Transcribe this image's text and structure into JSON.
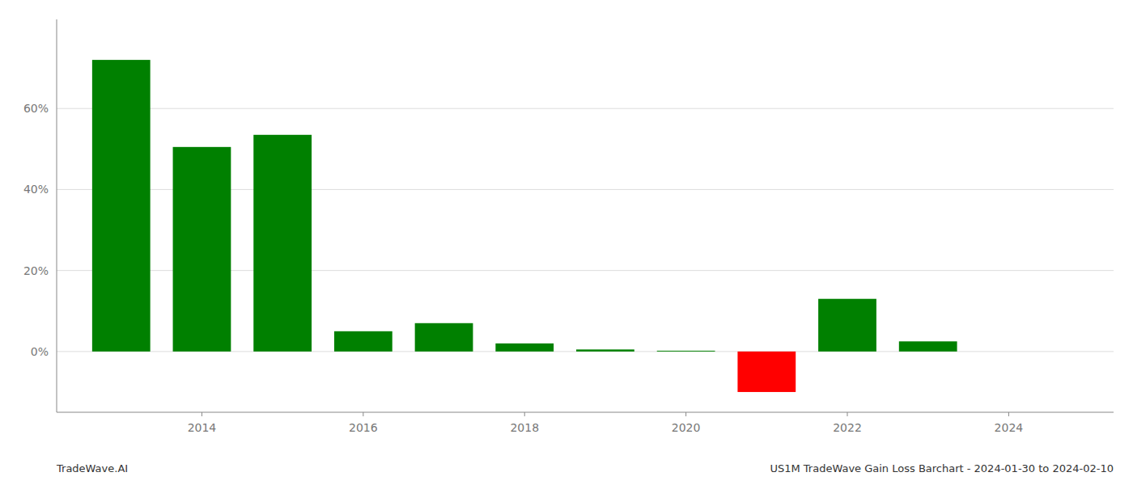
{
  "chart_data": {
    "type": "bar",
    "x": [
      2013,
      2014,
      2015,
      2016,
      2017,
      2018,
      2019,
      2020,
      2021,
      2022,
      2023
    ],
    "values": [
      0.72,
      0.505,
      0.535,
      0.05,
      0.07,
      0.02,
      0.005,
      0.002,
      -0.1,
      0.13,
      0.025
    ],
    "colors": [
      "#008000",
      "#008000",
      "#008000",
      "#008000",
      "#008000",
      "#008000",
      "#008000",
      "#008000",
      "#ff0000",
      "#008000",
      "#008000"
    ],
    "xlim": [
      2012.2,
      2025.3
    ],
    "xticks": [
      2014,
      2016,
      2018,
      2020,
      2022,
      2024
    ],
    "ylim": [
      -0.15,
      0.82
    ],
    "yticks": [
      {
        "value": 0.0,
        "label": "0%"
      },
      {
        "value": 0.2,
        "label": "20%"
      },
      {
        "value": 0.4,
        "label": "40%"
      },
      {
        "value": 0.6,
        "label": "60%"
      }
    ],
    "grid": "y",
    "annotations": [
      "TradeWave.AI",
      "US1M TradeWave Gain Loss Barchart - 2024-01-30 to 2024-02-10"
    ]
  }
}
